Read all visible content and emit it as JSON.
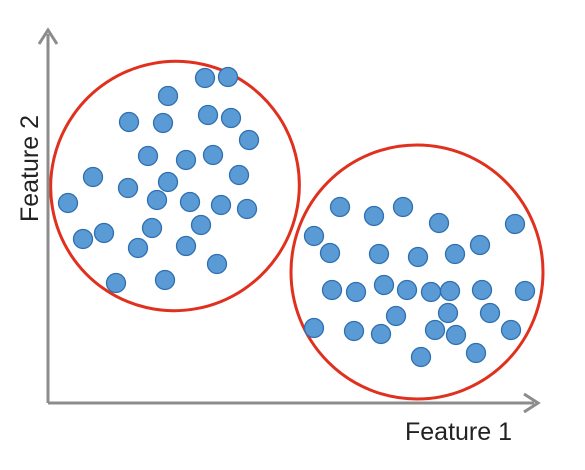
{
  "chart_data": {
    "type": "scatter",
    "xlabel": "Feature 1",
    "ylabel": "Feature 2",
    "grid": false,
    "ticks": false,
    "point_color": "#5B9BD5",
    "point_edge_color": "#2F6FB0",
    "cluster_outline_color": "#E0301E",
    "axis_color": "#8C8C8C",
    "clusters": [
      {
        "points": [
          [
            205,
            78
          ],
          [
            228,
            77
          ],
          [
            168,
            96
          ],
          [
            129,
            122
          ],
          [
            163,
            123
          ],
          [
            208,
            115
          ],
          [
            231,
            118
          ],
          [
            249,
            140
          ],
          [
            148,
            156
          ],
          [
            186,
            160
          ],
          [
            213,
            155
          ],
          [
            239,
            175
          ],
          [
            93,
            177
          ],
          [
            128,
            188
          ],
          [
            168,
            182
          ],
          [
            68,
            203
          ],
          [
            157,
            200
          ],
          [
            190,
            202
          ],
          [
            221,
            205
          ],
          [
            247,
            209
          ],
          [
            104,
            233
          ],
          [
            83,
            239
          ],
          [
            152,
            228
          ],
          [
            201,
            225
          ],
          [
            138,
            248
          ],
          [
            186,
            246
          ],
          [
            217,
            264
          ],
          [
            116,
            283
          ],
          [
            165,
            280
          ]
        ]
      },
      {
        "points": [
          [
            340,
            207
          ],
          [
            374,
            216
          ],
          [
            403,
            207
          ],
          [
            439,
            223
          ],
          [
            515,
            224
          ],
          [
            314,
            236
          ],
          [
            330,
            253
          ],
          [
            379,
            254
          ],
          [
            418,
            257
          ],
          [
            455,
            254
          ],
          [
            480,
            245
          ],
          [
            332,
            290
          ],
          [
            356,
            292
          ],
          [
            384,
            285
          ],
          [
            407,
            290
          ],
          [
            431,
            292
          ],
          [
            450,
            291
          ],
          [
            482,
            290
          ],
          [
            525,
            291
          ],
          [
            396,
            316
          ],
          [
            448,
            313
          ],
          [
            490,
            313
          ],
          [
            314,
            328
          ],
          [
            354,
            331
          ],
          [
            381,
            334
          ],
          [
            435,
            330
          ],
          [
            456,
            335
          ],
          [
            511,
            330
          ],
          [
            421,
            357
          ],
          [
            476,
            353
          ]
        ]
      }
    ]
  }
}
